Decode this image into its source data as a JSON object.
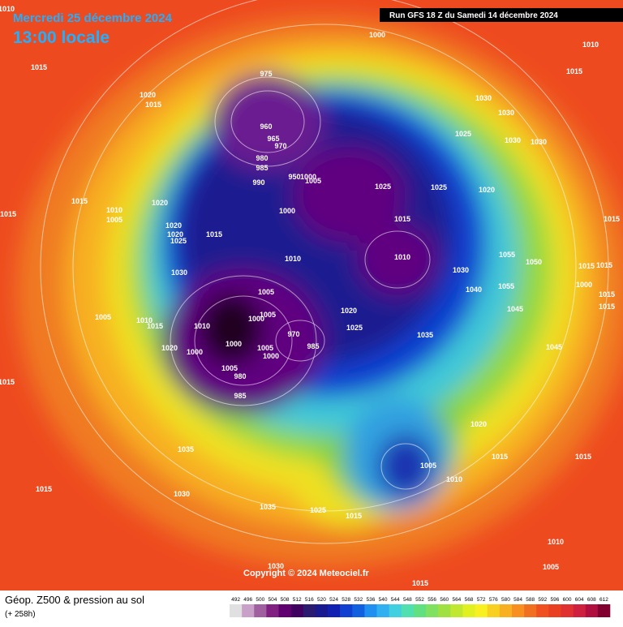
{
  "header": {
    "date": "Mercredi 25 décembre 2024",
    "time": "13:00 locale",
    "run": "Run GFS 18 Z du Samedi 14 décembre 2024"
  },
  "copyright": "Copyright © 2024 Meteociel.fr",
  "footer": {
    "title": "Géop. Z500 & pression au sol",
    "lead": "(+ 258h)"
  },
  "isobar_labels": [
    "1010",
    "1000",
    "1010",
    "1015",
    "975",
    "1015",
    "1020",
    "1015",
    "1030",
    "1030",
    "960",
    "965",
    "970",
    "1025",
    "1030",
    "1030",
    "980",
    "985",
    "950",
    "1000",
    "1005",
    "990",
    "1025",
    "1025",
    "1020",
    "1015",
    "1020",
    "1010",
    "1005",
    "1015",
    "1000",
    "1015",
    "1015",
    "1020",
    "1020",
    "1015",
    "1025",
    "1010",
    "1010",
    "1055",
    "1050",
    "1015",
    "1015",
    "1030",
    "1030",
    "1000",
    "1055",
    "1040",
    "1005",
    "1015",
    "1045",
    "1015",
    "1005",
    "1010",
    "1015",
    "1020",
    "1005",
    "1000",
    "1010",
    "1025",
    "970",
    "1035",
    "985",
    "1000",
    "1020",
    "1000",
    "1005",
    "1000",
    "1045",
    "1005",
    "980",
    "1015",
    "985",
    "1020",
    "1035",
    "1015",
    "1015",
    "1005",
    "1010",
    "1015",
    "1030",
    "1035",
    "1025",
    "1015",
    "1010",
    "1005",
    "1030",
    "1015"
  ],
  "colorbar": {
    "labels": [
      492,
      496,
      500,
      504,
      508,
      512,
      516,
      520,
      524,
      528,
      532,
      536,
      540,
      544,
      548,
      552,
      556,
      560,
      564,
      568,
      572,
      576,
      580,
      584,
      588,
      592,
      596,
      600,
      604,
      608,
      612
    ],
    "colors": [
      "#e0e0e0",
      "#c8a0c8",
      "#a060a0",
      "#802080",
      "#600070",
      "#400060",
      "#2a1a70",
      "#1a1a90",
      "#1020b0",
      "#1040d0",
      "#1060e0",
      "#2090f0",
      "#30b0f0",
      "#40d0e0",
      "#50e0b0",
      "#60e080",
      "#80e060",
      "#a0e040",
      "#c0e830",
      "#e0f020",
      "#f8f020",
      "#f8d020",
      "#f8b020",
      "#f89020",
      "#f07020",
      "#f05020",
      "#e84020",
      "#e03030",
      "#d02040",
      "#b01040",
      "#800030"
    ]
  }
}
